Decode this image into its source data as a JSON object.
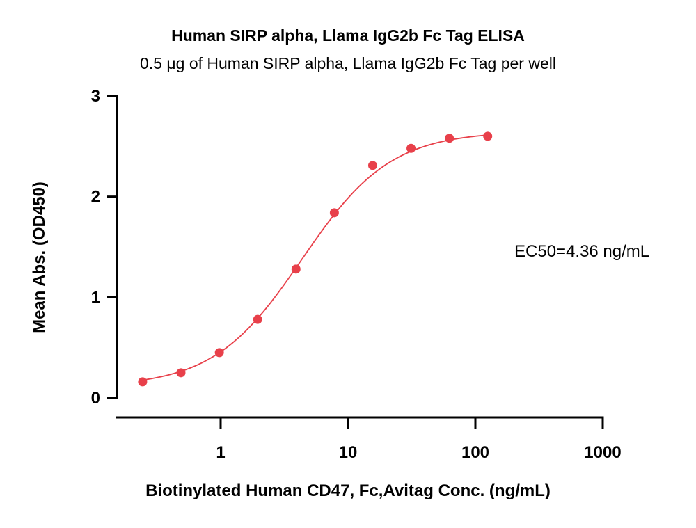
{
  "chart_data": {
    "type": "scatter",
    "title": "Human SIRP alpha, Llama IgG2b Fc Tag ELISA",
    "subtitle": "0.5 μg of Human SIRP alpha, Llama IgG2b Fc Tag per well",
    "xlabel": "Biotinylated Human CD47, Fc,Avitag Conc. (ng/mL)",
    "ylabel": "Mean Abs. (OD450)",
    "x_scale": "log",
    "xlim": [
      0.2,
      1000
    ],
    "ylim": [
      0,
      3
    ],
    "x_ticks": [
      1,
      10,
      100,
      1000
    ],
    "x_tick_labels": [
      "1",
      "10",
      "100",
      "1000"
    ],
    "y_ticks": [
      0,
      1,
      2,
      3
    ],
    "y_tick_labels": [
      "0",
      "1",
      "2",
      "3"
    ],
    "series": [
      {
        "color": "#e8404a",
        "x": [
          0.244,
          0.488,
          0.977,
          1.953,
          3.906,
          7.813,
          15.625,
          31.25,
          62.5,
          125
        ],
        "y": [
          0.16,
          0.25,
          0.45,
          0.78,
          1.28,
          1.84,
          2.31,
          2.48,
          2.58,
          2.6
        ]
      }
    ],
    "fit_curve": {
      "bottom": 0.11,
      "top": 2.65,
      "ec50": 4.36,
      "hill": 1.25,
      "color": "#e8404a"
    },
    "annotation": "EC50=4.36 ng/mL",
    "grid": false,
    "legend": "none"
  }
}
